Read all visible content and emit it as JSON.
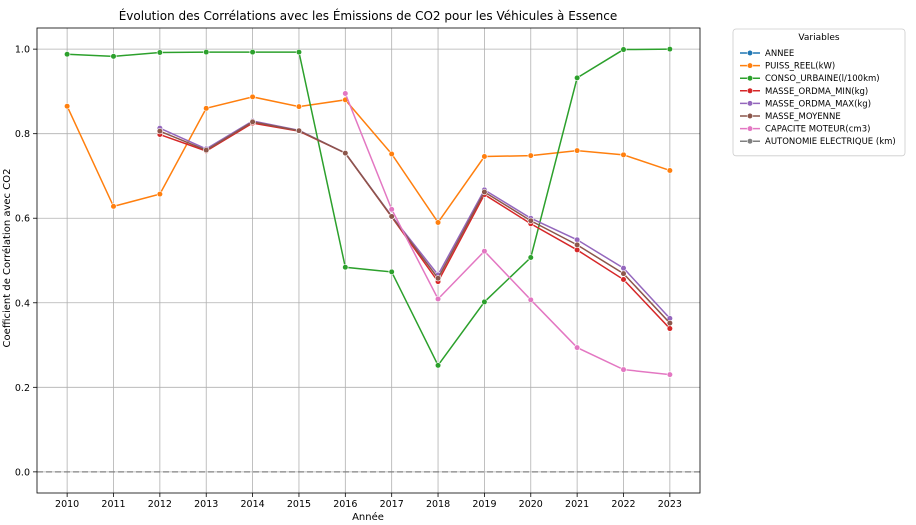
{
  "chart_data": {
    "type": "line",
    "title": "Évolution des Corrélations avec les Émissions de CO2 pour les Véhicules à Essence",
    "xlabel": "Année",
    "ylabel": "Coefficient de Corrélation avec CO2",
    "x": [
      2010,
      2011,
      2012,
      2013,
      2014,
      2015,
      2016,
      2017,
      2018,
      2019,
      2020,
      2021,
      2022,
      2023
    ],
    "xlim": [
      2009.35,
      2023.65
    ],
    "ylim": [
      -0.05,
      1.05
    ],
    "yticks": [
      "0.0",
      "0.2",
      "0.4",
      "0.6",
      "0.8",
      "1.0"
    ],
    "grid": true,
    "reference_line": {
      "y": 0.0,
      "style": "dashed",
      "color": "#808080"
    },
    "legend": {
      "title": "Variables",
      "placement": "outside-right"
    },
    "series": [
      {
        "name": "ANNEE",
        "color": "#1f77b4",
        "values": [
          null,
          null,
          null,
          null,
          null,
          null,
          null,
          null,
          null,
          null,
          null,
          null,
          null,
          null
        ]
      },
      {
        "name": "PUISS_REEL(kW)",
        "color": "#ff7f0e",
        "values": [
          0.865,
          0.628,
          0.657,
          0.86,
          0.887,
          0.864,
          0.88,
          0.752,
          0.59,
          0.746,
          0.748,
          0.76,
          0.75,
          0.713
        ]
      },
      {
        "name": "CONSO_URBAINE(l/100km)",
        "color": "#2ca02c",
        "values": [
          0.988,
          0.983,
          0.992,
          0.993,
          0.993,
          0.993,
          0.484,
          0.473,
          0.252,
          0.402,
          0.507,
          0.932,
          0.999,
          1.0
        ]
      },
      {
        "name": "MASSE_ORDMA_MIN(kg)",
        "color": "#d62728",
        "values": [
          null,
          null,
          0.798,
          0.759,
          0.825,
          0.806,
          0.754,
          0.603,
          0.45,
          0.656,
          0.587,
          0.525,
          0.455,
          0.339
        ]
      },
      {
        "name": "MASSE_ORDMA_MAX(kg)",
        "color": "#9467bd",
        "values": [
          null,
          null,
          0.813,
          0.764,
          0.83,
          0.808,
          0.754,
          0.605,
          0.466,
          0.667,
          0.6,
          0.549,
          0.482,
          0.363
        ]
      },
      {
        "name": "MASSE_MOYENNE",
        "color": "#8c564b",
        "values": [
          null,
          null,
          0.806,
          0.761,
          0.828,
          0.807,
          0.754,
          0.604,
          0.458,
          0.662,
          0.594,
          0.537,
          0.469,
          0.352
        ]
      },
      {
        "name": "CAPACITE MOTEUR(cm3)",
        "color": "#e377c2",
        "values": [
          null,
          null,
          null,
          null,
          null,
          null,
          0.895,
          0.621,
          0.409,
          0.522,
          0.407,
          0.294,
          0.242,
          0.23
        ]
      },
      {
        "name": "AUTONOMIE ELECTRIQUE (km)",
        "color": "#7f7f7f",
        "values": [
          null,
          null,
          null,
          null,
          null,
          null,
          null,
          null,
          null,
          null,
          null,
          null,
          null,
          null
        ]
      }
    ]
  }
}
